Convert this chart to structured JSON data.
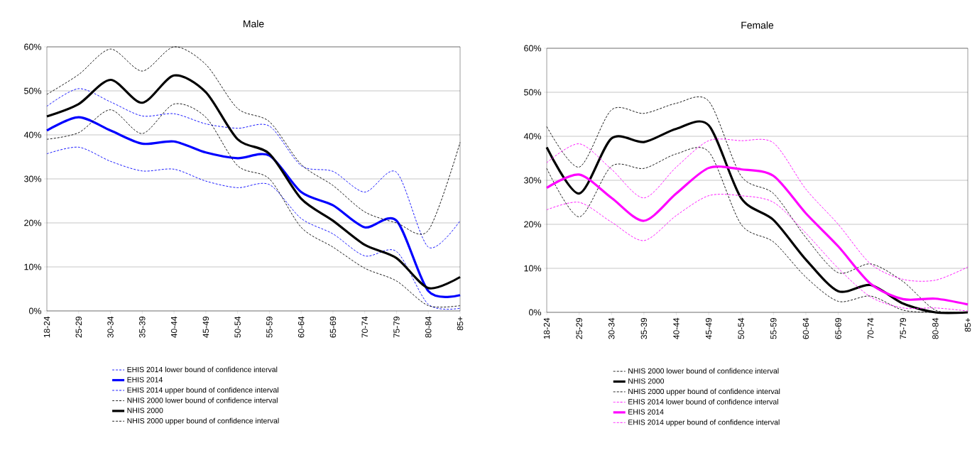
{
  "chart_data": [
    {
      "type": "line",
      "title": "Male",
      "categories": [
        "18-24",
        "25-29",
        "30-34",
        "35-39",
        "40-44",
        "45-49",
        "50-54",
        "55-59",
        "60-64",
        "65-69",
        "70-74",
        "75-79",
        "80-84",
        "85+"
      ],
      "ylim": [
        0,
        60
      ],
      "yticks": [
        {
          "value": 0,
          "label": "0%"
        },
        {
          "value": 10,
          "label": "10%"
        },
        {
          "value": 20,
          "label": "20%"
        },
        {
          "value": 30,
          "label": "30%"
        },
        {
          "value": 40,
          "label": "40%"
        },
        {
          "value": 50,
          "label": "50%"
        },
        {
          "value": 60,
          "label": "60%"
        }
      ],
      "grid": "y",
      "legend": "bottom",
      "series": [
        {
          "name": "EHIS 2014 lower bound of confidence interval",
          "color": "#0000ff",
          "line_style": "dashed",
          "values": [
            35.7,
            37.2,
            34,
            31.8,
            32.2,
            29.5,
            28,
            28.7,
            21,
            17.5,
            12.5,
            13.5,
            1.5,
            0.6
          ]
        },
        {
          "name": "EHIS 2014",
          "color": "#0000ff",
          "line_style": "solid",
          "values": [
            41,
            44,
            41,
            38,
            38.5,
            36,
            34.7,
            35.3,
            27,
            24,
            19,
            20.5,
            4.5,
            3.6
          ]
        },
        {
          "name": "EHIS 2014 upper bound of confidence interval",
          "color": "#0000ff",
          "line_style": "dashed",
          "values": [
            46.5,
            50.5,
            47.5,
            44.3,
            44.8,
            42.5,
            41.5,
            42,
            33,
            31.7,
            27,
            31.5,
            14.5,
            20.5
          ]
        },
        {
          "name": "NHIS 2000 lower bound of confidence interval",
          "color": "#000000",
          "line_style": "dashed",
          "values": [
            39,
            40.5,
            45.7,
            40.3,
            47,
            44,
            33,
            30,
            19,
            14.5,
            9.7,
            6.8,
            1.2,
            1.2
          ]
        },
        {
          "name": "NHIS 2000",
          "color": "#000000",
          "line_style": "solid",
          "values": [
            44.2,
            47,
            52.5,
            47.3,
            53.5,
            49.7,
            39,
            35.7,
            25.5,
            20.5,
            15,
            12,
            5.2,
            7.7
          ]
        },
        {
          "name": "NHIS 2000 upper bound of confidence interval",
          "color": "#000000",
          "line_style": "dashed",
          "values": [
            49.2,
            53.7,
            59.5,
            54.5,
            60,
            56,
            46,
            43,
            33.3,
            28.5,
            22.5,
            20,
            18.3,
            38.3
          ]
        }
      ]
    },
    {
      "type": "line",
      "title": "Female",
      "categories": [
        "18-24",
        "25-29",
        "30-34",
        "35-39",
        "40-44",
        "45-49",
        "50-54",
        "55-59",
        "60-64",
        "65-69",
        "70-74",
        "75-79",
        "80-84",
        "85+"
      ],
      "ylim": [
        0,
        60
      ],
      "yticks": [
        {
          "value": 0,
          "label": "0%"
        },
        {
          "value": 10,
          "label": "10%"
        },
        {
          "value": 20,
          "label": "20%"
        },
        {
          "value": 30,
          "label": "30%"
        },
        {
          "value": 40,
          "label": "40%"
        },
        {
          "value": 50,
          "label": "50%"
        },
        {
          "value": 60,
          "label": "60%"
        }
      ],
      "grid": "y",
      "legend": "bottom",
      "series": [
        {
          "name": "NHIS 2000 lower bound of confidence interval",
          "color": "#000000",
          "line_style": "dashed",
          "values": [
            32.7,
            21.7,
            33.2,
            32.7,
            36,
            36.5,
            20,
            16,
            8,
            2.5,
            3.7,
            0.5,
            0,
            0
          ]
        },
        {
          "name": "NHIS 2000",
          "color": "#000000",
          "line_style": "solid",
          "values": [
            37.5,
            27,
            39.5,
            38.7,
            41.7,
            42.5,
            26,
            21,
            12,
            4.8,
            6.2,
            2,
            0,
            0
          ]
        },
        {
          "name": "NHIS 2000 upper bound of confidence interval",
          "color": "#000000",
          "line_style": "dashed",
          "values": [
            42.2,
            33,
            46,
            45.2,
            47.5,
            48,
            31,
            27,
            17,
            9,
            11,
            7,
            0.5,
            0
          ]
        },
        {
          "name": "EHIS 2014 lower bound of confidence interval",
          "color": "#ff00ff",
          "line_style": "dashed",
          "values": [
            23.3,
            25,
            20.5,
            16.3,
            22,
            26.5,
            26.5,
            25,
            18,
            10,
            3.5,
            1,
            1,
            0.3
          ]
        },
        {
          "name": "EHIS 2014",
          "color": "#ff00ff",
          "line_style": "solid",
          "values": [
            28.3,
            31.3,
            26,
            20.8,
            27,
            32.8,
            32.5,
            31,
            22.5,
            15,
            6.5,
            3,
            3.1,
            1.8
          ]
        },
        {
          "name": "EHIS 2014 upper bound of confidence interval",
          "color": "#ff00ff",
          "line_style": "dashed",
          "values": [
            34,
            38.3,
            32.5,
            26,
            33,
            39,
            39,
            38.5,
            28,
            20,
            11,
            7.5,
            7.3,
            10.3
          ]
        }
      ]
    }
  ]
}
